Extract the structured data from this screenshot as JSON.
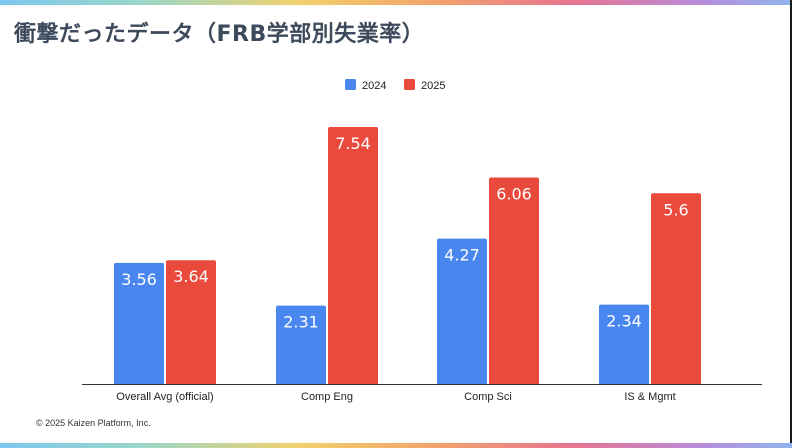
{
  "slide": {
    "title": "衝撃だったデータ（FRB学部別失業率）",
    "copyright": "© 2025 Kaizen Platform, Inc."
  },
  "chart_data": {
    "type": "bar",
    "categories": [
      "Overall Avg (official)",
      "Comp Eng",
      "Comp Sci",
      "IS & Mgmt"
    ],
    "series": [
      {
        "name": "2024",
        "values": [
          3.56,
          2.31,
          4.27,
          2.34
        ],
        "color": "#4a86f0"
      },
      {
        "name": "2025",
        "values": [
          3.64,
          7.54,
          6.06,
          5.6
        ],
        "color": "#ea4a3c"
      }
    ],
    "value_labels": [
      [
        "3.56",
        "2.31",
        "4.27",
        "2.34"
      ],
      [
        "3.64",
        "7.54",
        "6.06",
        "5.6"
      ]
    ],
    "ylim": [
      0,
      8
    ],
    "grid": false,
    "legend_position": "top-center",
    "data_labels": "inside-top"
  }
}
